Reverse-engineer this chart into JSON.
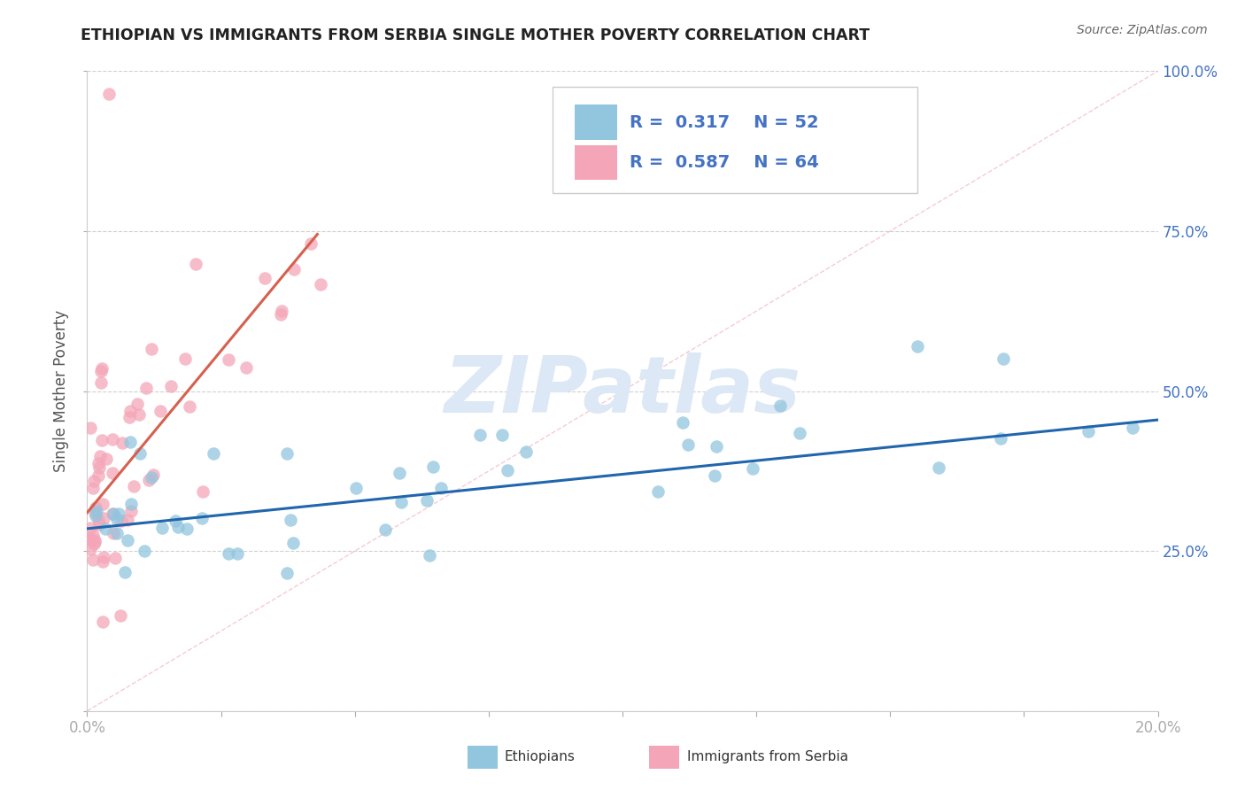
{
  "title": "ETHIOPIAN VS IMMIGRANTS FROM SERBIA SINGLE MOTHER POVERTY CORRELATION CHART",
  "source": "Source: ZipAtlas.com",
  "ylabel": "Single Mother Poverty",
  "R1": 0.317,
  "N1": 52,
  "R2": 0.587,
  "N2": 64,
  "blue_color": "#92c5de",
  "pink_color": "#f4a6b8",
  "blue_line_color": "#2166ac",
  "pink_line_color": "#d6604d",
  "diag_line_color": "#f4a6b8",
  "legend1_label": "Ethiopians",
  "legend2_label": "Immigrants from Serbia",
  "watermark_text": "ZIPatlas",
  "watermark_color": "#dce8f5",
  "background_color": "#ffffff",
  "grid_color": "#d0d0d0",
  "title_color": "#222222",
  "source_color": "#666666",
  "tick_label_color": "#4472c4",
  "axis_label_color": "#555555",
  "xlim": [
    0.0,
    0.2
  ],
  "ylim": [
    0.0,
    1.0
  ],
  "blue_line_x": [
    0.0,
    0.2
  ],
  "blue_line_y": [
    0.285,
    0.455
  ],
  "pink_line_x": [
    0.0,
    0.043
  ],
  "pink_line_y": [
    0.31,
    0.745
  ]
}
